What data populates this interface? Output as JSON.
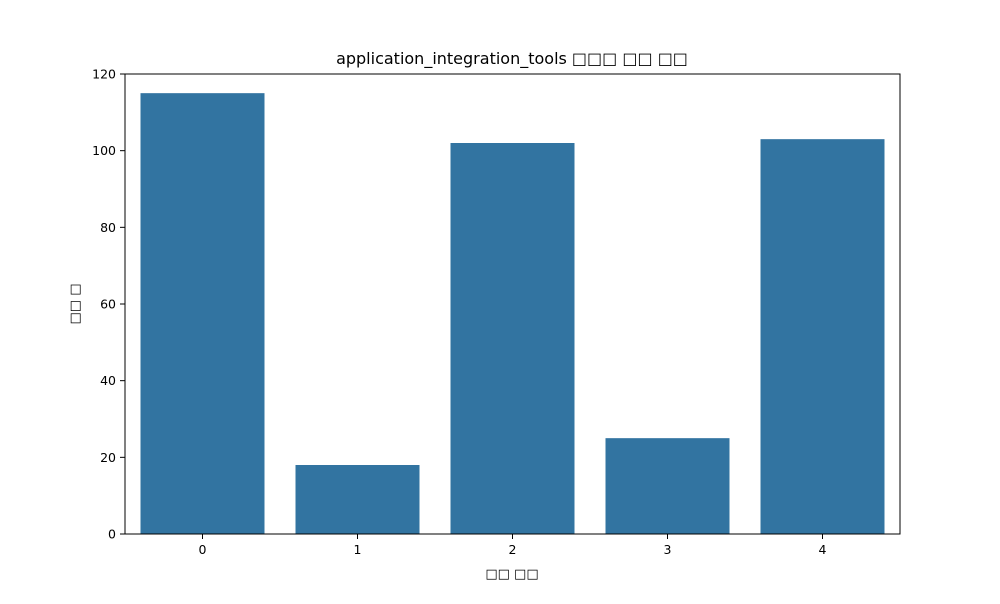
{
  "chart_data": {
    "type": "bar",
    "title": "application_integration_tools □□□ □□ □□",
    "xlabel": "□□ □□",
    "ylabel": "□□ □",
    "categories": [
      "0",
      "1",
      "2",
      "3",
      "4"
    ],
    "values": [
      115,
      18,
      102,
      25,
      103
    ],
    "ylim": [
      0,
      120
    ],
    "yticks": [
      0,
      20,
      40,
      60,
      80,
      100,
      120
    ],
    "grid": false,
    "legend": "none",
    "bar_color": "#3274a1"
  }
}
